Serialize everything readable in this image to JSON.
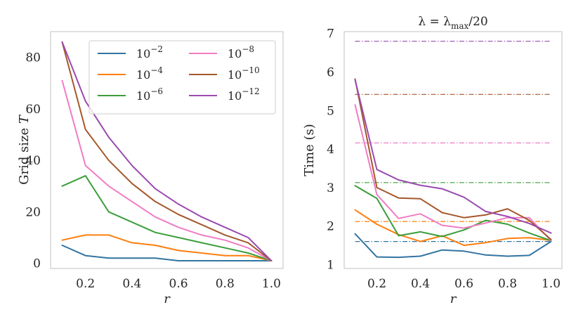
{
  "chart_data": [
    {
      "type": "line",
      "title": "",
      "xlabel": "r",
      "ylabel": "Grid size T",
      "xlim": [
        0.05,
        1.05
      ],
      "ylim": [
        -2,
        90
      ],
      "xticks": [
        0.2,
        0.4,
        0.6,
        0.8,
        1.0
      ],
      "xtick_labels": [
        "0.2",
        "0.4",
        "0.6",
        "0.8",
        "1.0"
      ],
      "yticks": [
        0,
        20,
        40,
        60,
        80
      ],
      "ytick_labels": [
        "0",
        "20",
        "40",
        "60",
        "80"
      ],
      "grid": false,
      "legend_placement": "top-right",
      "x": [
        0.1,
        0.2,
        0.3,
        0.4,
        0.5,
        0.6,
        0.7,
        0.8,
        0.9,
        1.0
      ],
      "series": [
        {
          "name": "10^-2",
          "base": "10",
          "exp": "−2",
          "color": "#3274a1",
          "values": [
            7,
            3,
            2,
            2,
            2,
            1,
            1,
            1,
            1,
            1
          ]
        },
        {
          "name": "10^-4",
          "base": "10",
          "exp": "−4",
          "color": "#ff7f0e",
          "values": [
            9,
            11,
            11,
            8,
            7,
            5,
            4,
            3,
            3,
            1
          ]
        },
        {
          "name": "10^-6",
          "base": "10",
          "exp": "−6",
          "color": "#3a9e3a",
          "values": [
            30,
            34,
            20,
            16,
            12,
            10,
            8,
            6,
            4,
            1
          ]
        },
        {
          "name": "10^-8",
          "base": "10",
          "exp": "−8",
          "color": "#f07cc4",
          "values": [
            71,
            38,
            30,
            24,
            18,
            14,
            11,
            9,
            6,
            1
          ]
        },
        {
          "name": "10^-10",
          "base": "10",
          "exp": "−10",
          "color": "#a5582b",
          "values": [
            86,
            52,
            40,
            31,
            24,
            19,
            15,
            11,
            8,
            1
          ]
        },
        {
          "name": "10^-12",
          "base": "10",
          "exp": "−12",
          "color": "#9a4ab0",
          "values": [
            86,
            63,
            49,
            38,
            29,
            23,
            18,
            14,
            10,
            1
          ]
        }
      ]
    },
    {
      "type": "line",
      "title": "λ = λmax/20",
      "title_parts": {
        "lhs": "λ = λ",
        "sub": "max",
        "rhs": "/20"
      },
      "xlabel": "r",
      "ylabel": "Time (s)",
      "xlim": [
        0.05,
        1.05
      ],
      "ylim": [
        0.9,
        7.05
      ],
      "xticks": [
        0.2,
        0.4,
        0.6,
        0.8,
        1.0
      ],
      "xtick_labels": [
        "0.2",
        "0.4",
        "0.6",
        "0.8",
        "1.0"
      ],
      "yticks": [
        1,
        2,
        3,
        4,
        5,
        6,
        7
      ],
      "ytick_labels": [
        "1",
        "2",
        "3",
        "4",
        "5",
        "6",
        "7"
      ],
      "grid": false,
      "x": [
        0.1,
        0.2,
        0.3,
        0.4,
        0.5,
        0.6,
        0.7,
        0.8,
        0.9,
        1.0
      ],
      "series": [
        {
          "name": "10^-2",
          "color": "#3274a1",
          "baseline": 1.6,
          "values": [
            1.8,
            1.2,
            1.19,
            1.22,
            1.38,
            1.35,
            1.25,
            1.22,
            1.24,
            1.6
          ]
        },
        {
          "name": "10^-4",
          "color": "#ff7f0e",
          "baseline": 2.12,
          "values": [
            2.42,
            2.05,
            1.78,
            1.6,
            1.75,
            1.5,
            1.57,
            1.68,
            1.7,
            1.63
          ]
        },
        {
          "name": "10^-6",
          "color": "#3a9e3a",
          "baseline": 3.13,
          "values": [
            3.05,
            2.72,
            1.75,
            1.85,
            1.73,
            1.9,
            2.15,
            2.05,
            1.82,
            1.62
          ]
        },
        {
          "name": "10^-8",
          "color": "#f07cc4",
          "baseline": 4.16,
          "values": [
            5.15,
            2.82,
            2.2,
            2.32,
            2.02,
            1.95,
            2.08,
            2.22,
            2.22,
            1.62
          ]
        },
        {
          "name": "10^-10",
          "color": "#a5582b",
          "baseline": 5.42,
          "values": [
            5.82,
            3.0,
            2.73,
            2.71,
            2.35,
            2.22,
            2.29,
            2.45,
            2.15,
            1.65
          ]
        },
        {
          "name": "10^-12",
          "color": "#9a4ab0",
          "baseline": 6.8,
          "values": [
            5.8,
            3.47,
            3.2,
            3.06,
            2.97,
            2.75,
            2.38,
            2.25,
            2.07,
            1.82
          ]
        }
      ]
    }
  ]
}
